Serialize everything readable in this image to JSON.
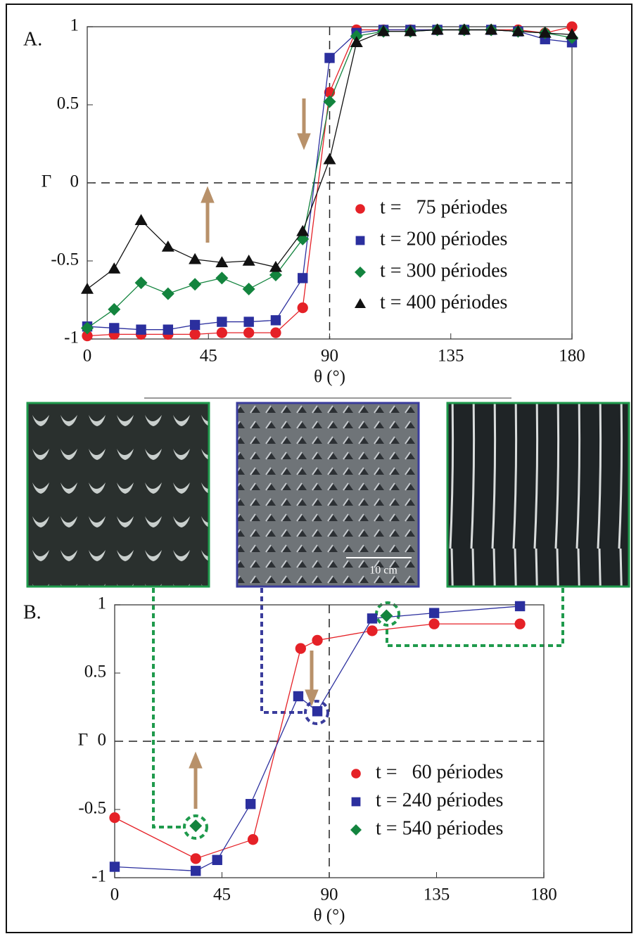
{
  "chart_data": [
    {
      "type": "line",
      "panel_label": "A.",
      "ylabel": "Γ",
      "xlabel": "θ (°)",
      "xlim": [
        0,
        180
      ],
      "ylim": [
        -1,
        1
      ],
      "xticks": [
        0,
        45,
        90,
        135,
        180
      ],
      "yticks": [
        -1,
        -0.5,
        0,
        0.5,
        1
      ],
      "hline": 0,
      "vline": 90,
      "x": [
        0,
        10,
        20,
        30,
        40,
        50,
        60,
        70,
        80,
        90,
        100,
        110,
        120,
        130,
        140,
        150,
        160,
        170,
        180
      ],
      "series": [
        {
          "name": "t =   75 périodes",
          "color": "#e52127",
          "marker": "circle",
          "values": [
            -0.98,
            -0.97,
            -0.97,
            -0.97,
            -0.97,
            -0.96,
            -0.96,
            -0.96,
            -0.8,
            0.58,
            0.98,
            0.98,
            0.98,
            0.98,
            0.98,
            0.98,
            0.98,
            0.96,
            1.0
          ]
        },
        {
          "name": "t = 200 périodes",
          "color": "#2b2f9e",
          "marker": "square",
          "values": [
            -0.92,
            -0.93,
            -0.94,
            -0.94,
            -0.91,
            -0.89,
            -0.89,
            -0.88,
            -0.61,
            0.8,
            0.96,
            0.98,
            0.98,
            0.98,
            0.98,
            0.98,
            0.97,
            0.92,
            0.9
          ]
        },
        {
          "name": "t = 300 périodes",
          "color": "#13843e",
          "marker": "diamond",
          "values": [
            -0.93,
            -0.81,
            -0.64,
            -0.71,
            -0.65,
            -0.61,
            -0.68,
            -0.59,
            -0.36,
            0.52,
            0.94,
            0.97,
            0.97,
            0.98,
            0.98,
            0.98,
            0.97,
            0.96,
            0.93
          ]
        },
        {
          "name": "t = 400 périodes",
          "color": "#111111",
          "marker": "triangle",
          "values": [
            -0.68,
            -0.55,
            -0.24,
            -0.41,
            -0.49,
            -0.51,
            -0.5,
            -0.54,
            -0.31,
            0.15,
            0.9,
            0.97,
            0.97,
            0.98,
            0.98,
            0.98,
            0.97,
            0.96,
            0.95
          ]
        }
      ]
    },
    {
      "type": "line",
      "panel_label": "B.",
      "ylabel": "Γ",
      "xlabel": "θ (°)",
      "xlim": [
        0,
        180
      ],
      "ylim": [
        -1,
        1
      ],
      "xticks": [
        0,
        45,
        90,
        135,
        180
      ],
      "yticks": [
        -1,
        -0.5,
        0,
        0.5,
        1
      ],
      "hline": 0,
      "vline": 90,
      "series": [
        {
          "name": "t =   60 périodes",
          "color": "#e52127",
          "marker": "circle",
          "x": [
            0,
            34,
            58,
            78,
            85,
            108,
            134,
            170
          ],
          "values": [
            -0.56,
            -0.86,
            -0.72,
            0.68,
            0.74,
            0.81,
            0.86,
            0.86
          ]
        },
        {
          "name": "t = 240 périodes",
          "color": "#2b2f9e",
          "marker": "square",
          "x": [
            0,
            34,
            43,
            57,
            77,
            85,
            108,
            134,
            170
          ],
          "values": [
            -0.92,
            -0.95,
            -0.87,
            -0.46,
            0.33,
            0.22,
            0.9,
            0.94,
            0.99
          ]
        },
        {
          "name": "t = 540 périodes",
          "color": "#13843e",
          "marker": "diamond",
          "line": false,
          "x": [
            34,
            114
          ],
          "values": [
            -0.62,
            0.92
          ]
        }
      ]
    }
  ],
  "photos": {
    "scale_label": "10 cm"
  }
}
